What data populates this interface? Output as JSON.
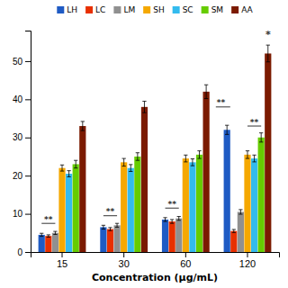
{
  "chart_data": {
    "type": "bar",
    "xlabel": "Concentration (μg/mL)",
    "categories": [
      "15",
      "30",
      "60",
      "120"
    ],
    "series": [
      {
        "name": "LH",
        "color": "#1f5bc4",
        "values": [
          4.5,
          6.5,
          8.5,
          32.0
        ],
        "errors": [
          0.4,
          0.5,
          0.5,
          1.2
        ]
      },
      {
        "name": "LC",
        "color": "#e83000",
        "values": [
          4.2,
          6.0,
          8.0,
          5.5
        ],
        "errors": [
          0.3,
          0.4,
          0.5,
          0.4
        ]
      },
      {
        "name": "LM",
        "color": "#909090",
        "values": [
          5.0,
          7.0,
          8.8,
          10.5
        ],
        "errors": [
          0.4,
          0.5,
          0.5,
          0.6
        ]
      },
      {
        "name": "SH",
        "color": "#f5a800",
        "values": [
          22.0,
          23.5,
          24.5,
          25.5
        ],
        "errors": [
          0.8,
          1.0,
          0.9,
          1.0
        ]
      },
      {
        "name": "SC",
        "color": "#33bbee",
        "values": [
          20.5,
          22.0,
          23.5,
          24.5
        ],
        "errors": [
          0.8,
          0.9,
          0.9,
          0.9
        ]
      },
      {
        "name": "SM",
        "color": "#66cc00",
        "values": [
          23.0,
          25.0,
          25.5,
          30.0
        ],
        "errors": [
          1.0,
          1.0,
          1.0,
          1.2
        ]
      },
      {
        "name": "AA",
        "color": "#7B1A00",
        "values": [
          33.0,
          38.0,
          42.0,
          52.0
        ],
        "errors": [
          1.2,
          1.5,
          1.8,
          2.2
        ]
      }
    ],
    "annotations": [
      {
        "text": "**",
        "category": "15",
        "series": [
          "LH",
          "LM"
        ],
        "y": 7.5
      },
      {
        "text": "**",
        "category": "30",
        "series": [
          "LH",
          "LM"
        ],
        "y": 9.5
      },
      {
        "text": "**",
        "category": "60",
        "series": [
          "LH",
          "LM"
        ],
        "y": 11.5
      },
      {
        "text": "**",
        "category": "120",
        "series": [
          "SH",
          "SM"
        ],
        "y": 33.0
      },
      {
        "text": "*",
        "category": "120",
        "series": "AA",
        "y": 56.2
      },
      {
        "text": "**",
        "category": "120",
        "series": [
          "LH"
        ],
        "y": 38.0
      }
    ],
    "ylim": [
      0,
      58
    ],
    "yticks": [
      0,
      10,
      20,
      30,
      40,
      50
    ],
    "grid": false,
    "legend": "top"
  }
}
